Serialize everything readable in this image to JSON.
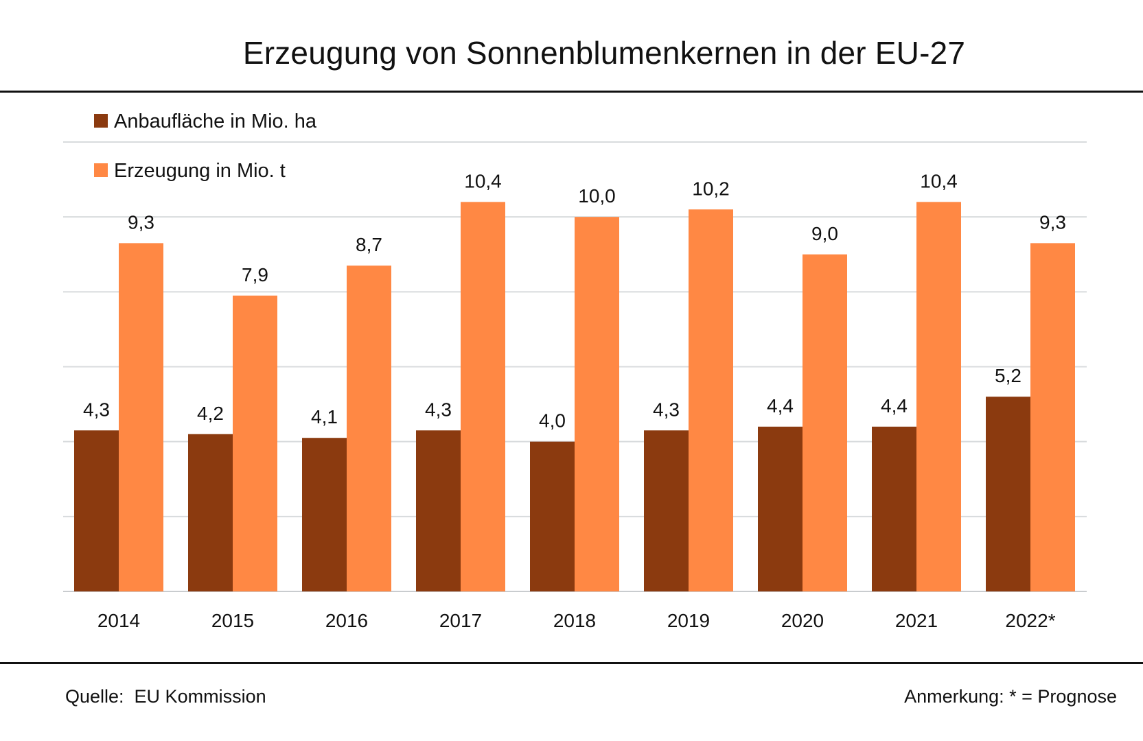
{
  "chart_data": {
    "type": "bar",
    "title": "Erzeugung von Sonnenblumenkernen in der EU-27",
    "categories": [
      "2014",
      "2015",
      "2016",
      "2017",
      "2018",
      "2019",
      "2020",
      "2021",
      "2022*"
    ],
    "series": [
      {
        "name": "Anbaufläche in Mio. ha",
        "color": "#8B3A0F",
        "values": [
          4.3,
          4.2,
          4.1,
          4.3,
          4.0,
          4.3,
          4.4,
          4.4,
          5.2
        ],
        "labels": [
          "4,3",
          "4,2",
          "4,1",
          "4,3",
          "4,0",
          "4,3",
          "4,4",
          "4,4",
          "5,2"
        ]
      },
      {
        "name": "Erzeugung in Mio. t",
        "color": "#FF8844",
        "values": [
          9.3,
          7.9,
          8.7,
          10.4,
          10.0,
          10.2,
          9.0,
          10.4,
          9.3
        ],
        "labels": [
          "9,3",
          "7,9",
          "8,7",
          "10,4",
          "10,0",
          "10,2",
          "9,0",
          "10,4",
          "9,3"
        ]
      }
    ],
    "ylim": [
      0,
      12
    ],
    "grid": true,
    "legend": "top-left",
    "xlabel": "",
    "ylabel": ""
  },
  "footer": {
    "source": "Quelle:  EU Kommission",
    "note": "Anmerkung: * = Prognose"
  }
}
